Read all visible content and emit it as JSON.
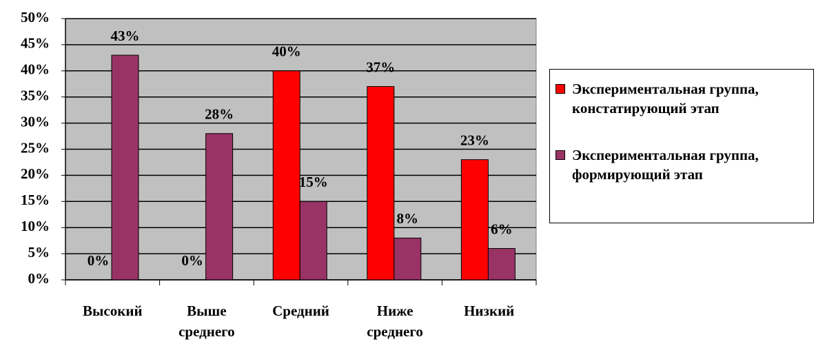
{
  "chart_data": {
    "type": "bar",
    "categories": [
      "Высокий",
      "Выше среднего",
      "Средний",
      "Ниже среднего",
      "Низкий"
    ],
    "series": [
      {
        "name": "Экспериментальная группа, констатирующий этап",
        "color": "#ff0000",
        "values": [
          0,
          0,
          40,
          37,
          23
        ],
        "value_labels": [
          "0%",
          "0%",
          "40%",
          "37%",
          "23%"
        ]
      },
      {
        "name": "Экспериментальная группа, формирующий этап",
        "color": "#993366",
        "values": [
          43,
          28,
          15,
          8,
          6
        ],
        "value_labels": [
          "43%",
          "28%",
          "15%",
          "8%",
          "6%"
        ]
      }
    ],
    "ylim": [
      0,
      50
    ],
    "yticks": [
      {
        "value": 0,
        "label": "0%"
      },
      {
        "value": 5,
        "label": "5%"
      },
      {
        "value": 10,
        "label": "10%"
      },
      {
        "value": 15,
        "label": "15%"
      },
      {
        "value": 20,
        "label": "20%"
      },
      {
        "value": 25,
        "label": "25%"
      },
      {
        "value": 30,
        "label": "30%"
      },
      {
        "value": 35,
        "label": "35%"
      },
      {
        "value": 40,
        "label": "40%"
      },
      {
        "value": 45,
        "label": "45%"
      },
      {
        "value": 50,
        "label": "50%"
      }
    ],
    "grid": true,
    "background": "#c0c0c0",
    "legend": "right"
  }
}
